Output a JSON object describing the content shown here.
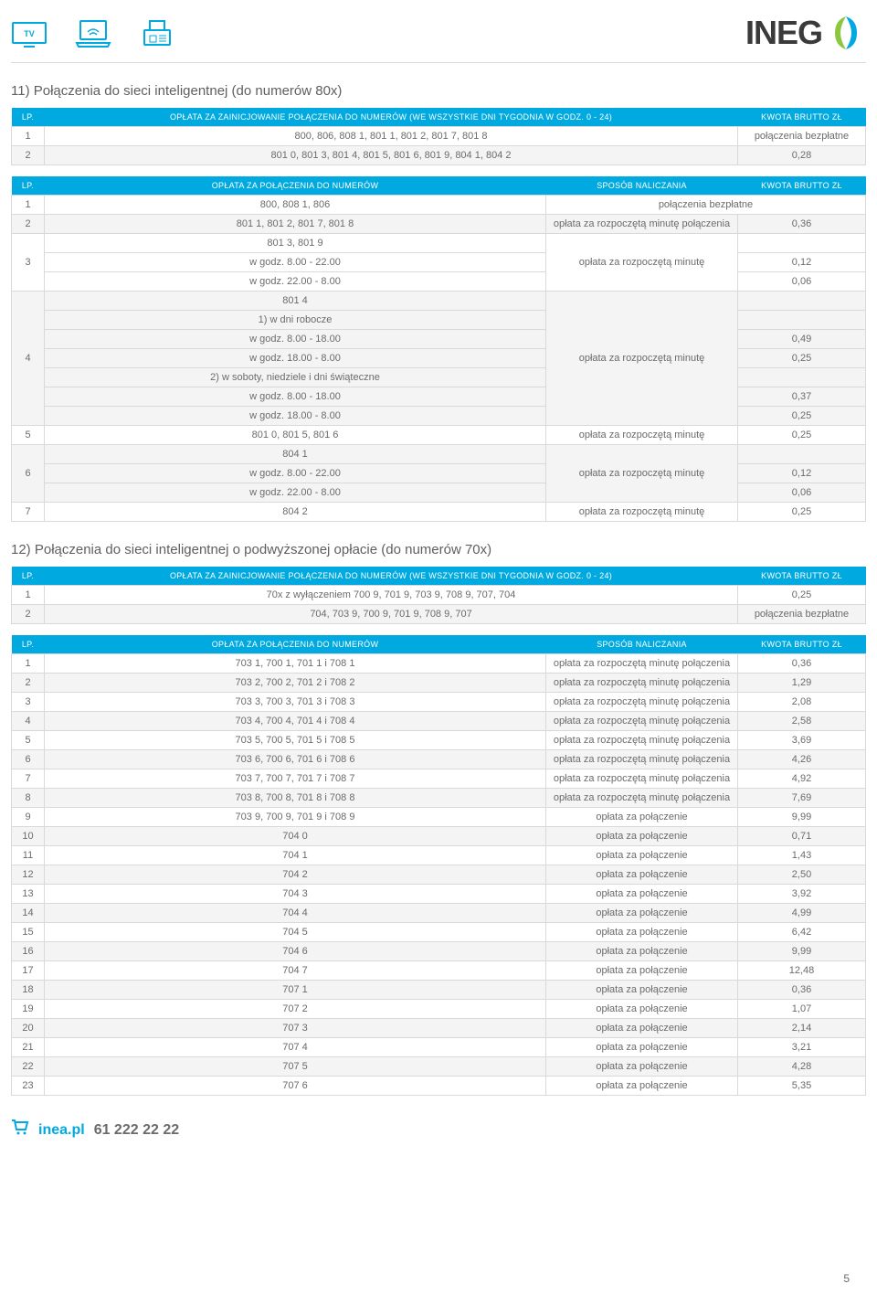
{
  "header": {
    "logo_text": "INEG"
  },
  "section11_title": "11) Połączenia do sieci inteligentnej (do numerów 80x)",
  "table_a": {
    "headers": {
      "lp": "LP.",
      "desc": "OPŁATA ZA ZAINICJOWANIE POŁĄCZENIA DO NUMERÓW (WE WSZYSTKIE DNI TYGODNIA W GODZ. 0 - 24)",
      "kwota": "KWOTA BRUTTO ZŁ"
    },
    "rows": [
      {
        "lp": "1",
        "desc": "800, 806, 808 1, 801 1, 801 2, 801 7, 801 8",
        "kwota": "połączenia bezpłatne"
      },
      {
        "lp": "2",
        "desc": "801 0, 801 3, 801 4, 801 5, 801 6, 801 9, 804 1, 804 2",
        "kwota": "0,28"
      }
    ]
  },
  "table_b": {
    "headers": {
      "lp": "LP.",
      "desc": "OPŁATA ZA POŁĄCZENIA DO NUMERÓW",
      "sposob": "SPOSÓB NALICZANIA",
      "kwota": "KWOTA BRUTTO ZŁ"
    },
    "r1": {
      "lp": "1",
      "desc": "800, 808 1, 806",
      "kwota": "połączenia bezpłatne"
    },
    "r2": {
      "lp": "2",
      "desc": "801 1, 801 2, 801 7, 801 8",
      "sposob": "opłata za rozpoczętą minutę połączenia",
      "kwota": "0,36"
    },
    "r3": {
      "lp": "3",
      "desc_top": "801 3, 801 9",
      "desc_1": "w godz. 8.00 - 22.00",
      "desc_2": "w godz. 22.00 - 8.00",
      "sposob": "opłata za rozpoczętą minutę",
      "k1": "0,12",
      "k2": "0,06"
    },
    "r4": {
      "lp": "4",
      "desc_top": "801 4",
      "sub1": "1) w dni robocze",
      "d1": "w godz. 8.00 - 18.00",
      "k1": "0,49",
      "d2": "w godz. 18.00 - 8.00",
      "k2": "0,25",
      "sub2": "2) w soboty, niedziele i dni świąteczne",
      "d3": "w godz. 8.00 - 18.00",
      "k3": "0,37",
      "d4": "w godz. 18.00 - 8.00",
      "k4": "0,25",
      "sposob": "opłata za rozpoczętą minutę"
    },
    "r5": {
      "lp": "5",
      "desc": "801 0, 801 5, 801 6",
      "sposob": "opłata za rozpoczętą minutę",
      "kwota": "0,25"
    },
    "r6": {
      "lp": "6",
      "desc_top": "804 1",
      "d1": "w godz. 8.00 - 22.00",
      "k1": "0,12",
      "d2": "w godz. 22.00 - 8.00",
      "k2": "0,06",
      "sposob": "opłata za rozpoczętą minutę"
    },
    "r7": {
      "lp": "7",
      "desc": "804 2",
      "sposob": "opłata za rozpoczętą minutę",
      "kwota": "0,25"
    }
  },
  "section12_title": "12) Połączenia do sieci inteligentnej o podwyższonej opłacie (do numerów 70x)",
  "table_c": {
    "headers": {
      "lp": "LP.",
      "desc": "OPŁATA ZA ZAINICJOWANIE POŁĄCZENIA DO NUMERÓW (WE WSZYSTKIE DNI TYGODNIA W GODZ. 0 - 24)",
      "kwota": "KWOTA BRUTTO ZŁ"
    },
    "rows": [
      {
        "lp": "1",
        "desc": "70x z wyłączeniem 700 9, 701 9, 703 9, 708 9, 707, 704",
        "kwota": "0,25"
      },
      {
        "lp": "2",
        "desc": "704, 703 9, 700 9, 701 9, 708 9, 707",
        "kwota": "połączenia bezpłatne"
      }
    ]
  },
  "table_d": {
    "headers": {
      "lp": "LP.",
      "desc": "OPŁATA ZA POŁĄCZENIA DO NUMERÓW",
      "sposob": "SPOSÓB NALICZANIA",
      "kwota": "KWOTA BRUTTO ZŁ"
    },
    "rows": [
      {
        "lp": "1",
        "desc": "703 1, 700 1, 701 1 i 708 1",
        "sposob": "opłata za rozpoczętą minutę połączenia",
        "kwota": "0,36"
      },
      {
        "lp": "2",
        "desc": "703 2, 700 2, 701 2 i 708 2",
        "sposob": "opłata za rozpoczętą minutę połączenia",
        "kwota": "1,29"
      },
      {
        "lp": "3",
        "desc": "703 3, 700 3, 701 3 i 708 3",
        "sposob": "opłata za rozpoczętą minutę połączenia",
        "kwota": "2,08"
      },
      {
        "lp": "4",
        "desc": "703 4, 700 4, 701 4 i 708 4",
        "sposob": "opłata za rozpoczętą minutę połączenia",
        "kwota": "2,58"
      },
      {
        "lp": "5",
        "desc": "703 5, 700 5, 701 5 i 708 5",
        "sposob": "opłata za rozpoczętą minutę połączenia",
        "kwota": "3,69"
      },
      {
        "lp": "6",
        "desc": "703 6, 700 6, 701 6 i 708 6",
        "sposob": "opłata za rozpoczętą minutę połączenia",
        "kwota": "4,26"
      },
      {
        "lp": "7",
        "desc": "703 7, 700 7, 701 7 i 708 7",
        "sposob": "opłata za rozpoczętą minutę połączenia",
        "kwota": "4,92"
      },
      {
        "lp": "8",
        "desc": "703 8, 700 8, 701 8 i 708 8",
        "sposob": "opłata za rozpoczętą minutę połączenia",
        "kwota": "7,69"
      },
      {
        "lp": "9",
        "desc": "703 9, 700 9, 701 9 i 708 9",
        "sposob": "opłata za połączenie",
        "kwota": "9,99"
      },
      {
        "lp": "10",
        "desc": "704 0",
        "sposob": "opłata za połączenie",
        "kwota": "0,71"
      },
      {
        "lp": "11",
        "desc": "704 1",
        "sposob": "opłata za połączenie",
        "kwota": "1,43"
      },
      {
        "lp": "12",
        "desc": "704 2",
        "sposob": "opłata za połączenie",
        "kwota": "2,50"
      },
      {
        "lp": "13",
        "desc": "704 3",
        "sposob": "opłata za połączenie",
        "kwota": "3,92"
      },
      {
        "lp": "14",
        "desc": "704 4",
        "sposob": "opłata za połączenie",
        "kwota": "4,99"
      },
      {
        "lp": "15",
        "desc": "704 5",
        "sposob": "opłata za połączenie",
        "kwota": "6,42"
      },
      {
        "lp": "16",
        "desc": "704 6",
        "sposob": "opłata za połączenie",
        "kwota": "9,99"
      },
      {
        "lp": "17",
        "desc": "704 7",
        "sposob": "opłata za połączenie",
        "kwota": "12,48"
      },
      {
        "lp": "18",
        "desc": "707 1",
        "sposob": "opłata za połączenie",
        "kwota": "0,36"
      },
      {
        "lp": "19",
        "desc": "707 2",
        "sposob": "opłata za połączenie",
        "kwota": "1,07"
      },
      {
        "lp": "20",
        "desc": "707 3",
        "sposob": "opłata za połączenie",
        "kwota": "2,14"
      },
      {
        "lp": "21",
        "desc": "707 4",
        "sposob": "opłata za połączenie",
        "kwota": "3,21"
      },
      {
        "lp": "22",
        "desc": "707 5",
        "sposob": "opłata za połączenie",
        "kwota": "4,28"
      },
      {
        "lp": "23",
        "desc": "707 6",
        "sposob": "opłata za połączenie",
        "kwota": "5,35"
      }
    ]
  },
  "footer": {
    "url": "inea.pl",
    "phone": "61 222 22 22",
    "page": "5"
  },
  "colors": {
    "accent": "#00a9e0",
    "text": "#6b6b6b",
    "border": "#d9d9d9",
    "alt_row": "#f4f4f4"
  }
}
